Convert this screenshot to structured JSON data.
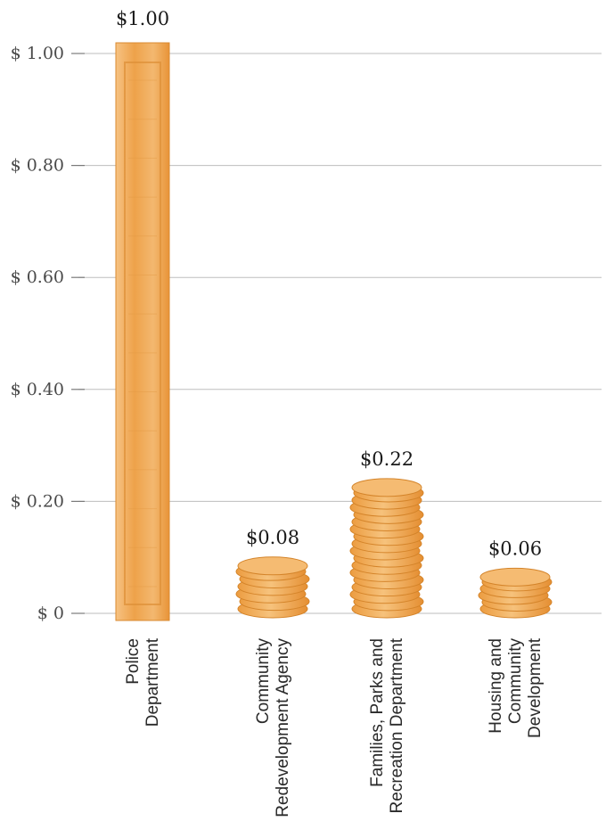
{
  "chart_data": {
    "type": "bar",
    "title": "",
    "xlabel": "",
    "ylabel": "",
    "ylim": [
      0,
      1.0
    ],
    "yticks": [
      0,
      0.2,
      0.4,
      0.6,
      0.8,
      1.0
    ],
    "ytick_labels": [
      "$ 0",
      "$ 0.20",
      "$ 0.40",
      "$ 0.60",
      "$ 0.80",
      "$ 1.00"
    ],
    "categories": [
      [
        "Police",
        "Department"
      ],
      [
        "Community",
        "Redevelopment Agency"
      ],
      [
        "Families, Parks and",
        "Recreation Department"
      ],
      [
        "Housing and",
        "Community",
        "Development"
      ]
    ],
    "values": [
      1.0,
      0.08,
      0.22,
      0.06
    ],
    "value_labels": [
      "$1.00",
      "$0.08",
      "$0.22",
      "$0.06"
    ],
    "mark_style": [
      "dollar-bill",
      "coin-stack",
      "coin-stack",
      "coin-stack"
    ],
    "grid": true,
    "legend": "none",
    "colors": {
      "bar": "#f0a850",
      "bar_light": "#f8cf95",
      "bar_dark": "#d88a2e",
      "grid": "#bdbdbd"
    }
  }
}
